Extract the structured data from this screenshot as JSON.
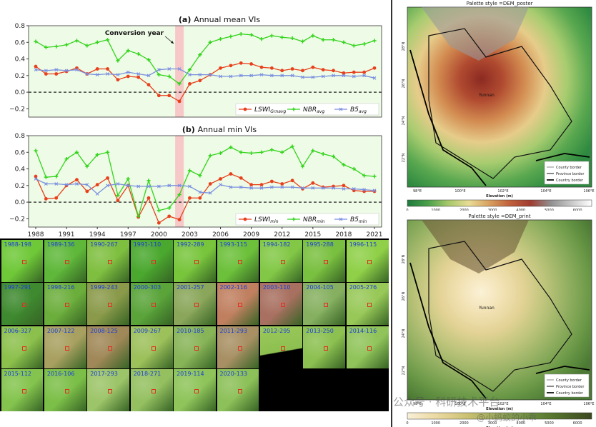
{
  "chart_data": [
    {
      "type": "line",
      "title": "(a) Annual mean VIs",
      "annotation": "Conversion year",
      "highlight_year": 2002,
      "x": [
        1988,
        1989,
        1990,
        1991,
        1992,
        1993,
        1994,
        1995,
        1996,
        1997,
        1998,
        1999,
        2000,
        2001,
        2002,
        2003,
        2004,
        2005,
        2006,
        2007,
        2008,
        2009,
        2010,
        2011,
        2012,
        2013,
        2014,
        2015,
        2016,
        2017,
        2018,
        2019,
        2020,
        2021
      ],
      "ylim": [
        -0.3,
        0.8
      ],
      "yticks": [
        "0.8",
        "0.6",
        "0.4",
        "0.2",
        "0.0",
        "−0.2"
      ],
      "series": [
        {
          "name": "LSWIGrnavg",
          "label_main": "LSWI",
          "label_sub": "Grnavg",
          "color": "#e8401c",
          "marker": "circle",
          "values": [
            0.31,
            0.22,
            0.22,
            0.25,
            0.29,
            0.22,
            0.28,
            0.28,
            0.15,
            0.19,
            0.18,
            0.09,
            -0.04,
            -0.04,
            -0.11,
            0.1,
            0.14,
            0.21,
            0.29,
            0.32,
            0.35,
            0.34,
            0.3,
            0.29,
            0.26,
            0.28,
            0.26,
            0.3,
            0.27,
            0.26,
            0.23,
            0.24,
            0.24,
            0.29
          ]
        },
        {
          "name": "NBRavg",
          "label_main": "NBR",
          "label_sub": "avg",
          "color": "#33d41c",
          "marker": "plus",
          "values": [
            0.61,
            0.54,
            0.55,
            0.57,
            0.62,
            0.56,
            0.6,
            0.63,
            0.38,
            0.5,
            0.46,
            0.39,
            0.21,
            0.19,
            0.1,
            0.27,
            0.45,
            0.6,
            0.64,
            0.67,
            0.7,
            0.69,
            0.64,
            0.68,
            0.66,
            0.65,
            0.61,
            0.68,
            0.63,
            0.63,
            0.6,
            0.56,
            0.58,
            0.62
          ]
        },
        {
          "name": "B5avg",
          "label_main": "B5",
          "label_sub": "avg",
          "color": "#7a8fe0",
          "marker": "x",
          "values": [
            0.27,
            0.26,
            0.27,
            0.26,
            0.27,
            0.22,
            0.21,
            0.22,
            0.21,
            0.24,
            0.22,
            0.2,
            0.27,
            0.28,
            0.28,
            0.21,
            0.21,
            0.21,
            0.19,
            0.19,
            0.2,
            0.2,
            0.21,
            0.2,
            0.2,
            0.2,
            0.18,
            0.18,
            0.19,
            0.2,
            0.2,
            0.19,
            0.2,
            0.17
          ]
        }
      ]
    },
    {
      "type": "line",
      "title": "(b) Annual min VIs",
      "highlight_year": 2002,
      "x": [
        1988,
        1989,
        1990,
        1991,
        1992,
        1993,
        1994,
        1995,
        1996,
        1997,
        1998,
        1999,
        2000,
        2001,
        2002,
        2003,
        2004,
        2005,
        2006,
        2007,
        2008,
        2009,
        2010,
        2011,
        2012,
        2013,
        2014,
        2015,
        2016,
        2017,
        2018,
        2019,
        2020,
        2021
      ],
      "xticks": [
        "1988",
        "1991",
        "1994",
        "1997",
        "2000",
        "2003",
        "2006",
        "2009",
        "2012",
        "2015",
        "2018",
        "2021"
      ],
      "ylim": [
        -0.3,
        0.8
      ],
      "yticks": [
        "0.8",
        "0.6",
        "0.4",
        "0.2",
        "0.0",
        "−0.2"
      ],
      "series": [
        {
          "name": "LSWImin",
          "label_main": "LSWI",
          "label_sub": "min",
          "color": "#e8401c",
          "marker": "circle",
          "values": [
            0.31,
            0.04,
            0.05,
            0.2,
            0.27,
            0.13,
            0.21,
            0.29,
            0.02,
            0.2,
            -0.18,
            0.05,
            -0.25,
            -0.17,
            -0.21,
            0.05,
            0.05,
            0.22,
            0.28,
            0.34,
            0.29,
            0.21,
            0.21,
            0.25,
            0.22,
            0.26,
            0.16,
            0.23,
            0.18,
            0.19,
            0.2,
            0.14,
            0.13,
            0.13
          ]
        },
        {
          "name": "NBRmin",
          "label_main": "NBR",
          "label_sub": "min",
          "color": "#33d41c",
          "marker": "plus",
          "values": [
            0.62,
            0.3,
            0.31,
            0.52,
            0.6,
            0.43,
            0.57,
            0.6,
            0.08,
            0.28,
            -0.17,
            0.26,
            -0.1,
            -0.07,
            0.09,
            0.38,
            0.32,
            0.56,
            0.59,
            0.66,
            0.6,
            0.59,
            0.6,
            0.63,
            0.6,
            0.67,
            0.43,
            0.62,
            0.58,
            0.55,
            0.45,
            0.4,
            0.32,
            0.31
          ]
        },
        {
          "name": "B5min",
          "label_main": "B5",
          "label_sub": "min",
          "color": "#7a8fe0",
          "marker": "x",
          "values": [
            0.28,
            0.22,
            0.22,
            0.21,
            0.22,
            0.21,
            0.1,
            0.2,
            0.22,
            0.2,
            0.19,
            0.19,
            0.19,
            0.2,
            0.2,
            0.19,
            0.12,
            0.11,
            0.21,
            0.18,
            0.18,
            0.17,
            0.17,
            0.18,
            0.18,
            0.18,
            0.17,
            0.17,
            0.17,
            0.17,
            0.16,
            0.16,
            0.15,
            0.14
          ]
        }
      ]
    }
  ],
  "thumbnails": [
    "1988-198",
    "1989-136",
    "1990-267",
    "1991-110",
    "1992-289",
    "1993-115",
    "1994-182",
    "1995-288",
    "1996-115",
    "1997-291",
    "1998-216",
    "1999-243",
    "2000-303",
    "2001-257",
    "2002-116",
    "2003-110",
    "2004-105",
    "2005-276",
    "2006-327",
    "2007-122",
    "2008-125",
    "2009-267",
    "2010-185",
    "2011-293",
    "2012-295",
    "2013-250",
    "2014-116",
    "2015-112",
    "2016-106",
    "2017-293",
    "2018-271",
    "2019-114",
    "2020-133"
  ],
  "thumb_colors": [
    "#6fc838",
    "#5fb83a",
    "#7fbf40",
    "#4aa82e",
    "#78c53c",
    "#6cc03a",
    "#82c846",
    "#7ac040",
    "#8fd048",
    "#3f8a30",
    "#6cae3c",
    "#8a9a4a",
    "#5aa43a",
    "#8aa65a",
    "#c08060",
    "#a87060",
    "#86b060",
    "#98c858",
    "#8cc04c",
    "#a8a060",
    "#a08858",
    "#9cc05a",
    "#88b458",
    "#a89064",
    "#e8e8e8",
    "#8cc050",
    "#90c45a",
    "#84c44e",
    "#7cbf48",
    "#9cc468",
    "#94c060",
    "#8ec45a",
    "#8cc058"
  ],
  "maps": [
    {
      "title": "Palette style =DEM_poster",
      "region_label": "Yunnan",
      "lon_ticks": [
        "98°E",
        "100°E",
        "102°E",
        "104°E",
        "106°E"
      ],
      "lat_ticks": [
        "28°N",
        "26°N",
        "24°N",
        "22°N"
      ],
      "legend": [
        "County border",
        "Province border",
        "Country border"
      ],
      "colorbar_ticks": [
        "0",
        "1000",
        "2000",
        "3000",
        "4000",
        "5000",
        "6000"
      ],
      "colorbar_label": "Elevation (m)",
      "colorbar_colors": [
        "#1f7a3c",
        "#4aa04a",
        "#a6c86a",
        "#e8dc96",
        "#d8a060",
        "#c0603c",
        "#a03c30",
        "#909090",
        "#c8c8c8",
        "#ffffff"
      ]
    },
    {
      "title": "Palette style =DEM_print",
      "region_label": "Yunnan",
      "lon_ticks": [
        "98°E",
        "100°E",
        "102°E",
        "104°E",
        "106°E"
      ],
      "lat_ticks": [
        "28°N",
        "26°N",
        "24°N",
        "22°N"
      ],
      "legend": [
        "County border",
        "Province border",
        "Country border"
      ],
      "colorbar_ticks": [
        "0",
        "1000",
        "2000",
        "3000",
        "4000",
        "5000",
        "6000"
      ],
      "colorbar_label": "Elevation (m)",
      "colorbar_colors": [
        "#f8f0d8",
        "#f0e0b0",
        "#e0d090",
        "#c8c070",
        "#a8b060",
        "#88a050",
        "#6c8c40",
        "#587830",
        "#4a6028",
        "#3c4820"
      ]
    }
  ],
  "watermark": "公众号 · 科研技术平台",
  "watermark2": "@小蚂蚁的小乖"
}
